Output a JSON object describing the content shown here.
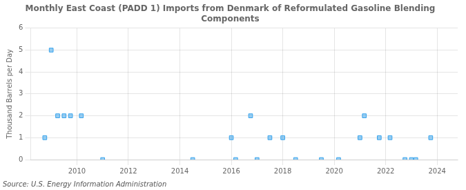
{
  "chart_data": {
    "type": "scatter",
    "title": "Monthly East Coast (PADD 1) Imports from Denmark of Reformulated Gasoline Blending\nComponents",
    "ylabel": "Thousand Barrels per Day",
    "source": "Source: U.S. Energy Information Administration",
    "x": [
      2008.75,
      2009.0,
      2009.25,
      2009.5,
      2009.75,
      2010.17,
      2011.0,
      2014.5,
      2016.0,
      2016.17,
      2016.75,
      2017.0,
      2017.5,
      2018.0,
      2018.5,
      2019.5,
      2020.17,
      2021.0,
      2021.17,
      2021.75,
      2022.17,
      2022.75,
      2023.0,
      2023.17,
      2023.75
    ],
    "values": [
      1,
      5,
      2,
      2,
      2,
      2,
      0,
      0,
      1,
      0,
      2,
      0,
      1,
      1,
      0,
      0,
      0,
      1,
      2,
      1,
      1,
      0,
      0,
      0,
      1
    ],
    "marker": "square",
    "xlim": [
      2008.2,
      2024.8
    ],
    "xticks": [
      2010,
      2012,
      2014,
      2016,
      2018,
      2020,
      2022,
      2024
    ],
    "ylim": [
      0,
      6
    ],
    "yticks": [
      0,
      1,
      2,
      3,
      4,
      5,
      6
    ],
    "grid": true
  }
}
